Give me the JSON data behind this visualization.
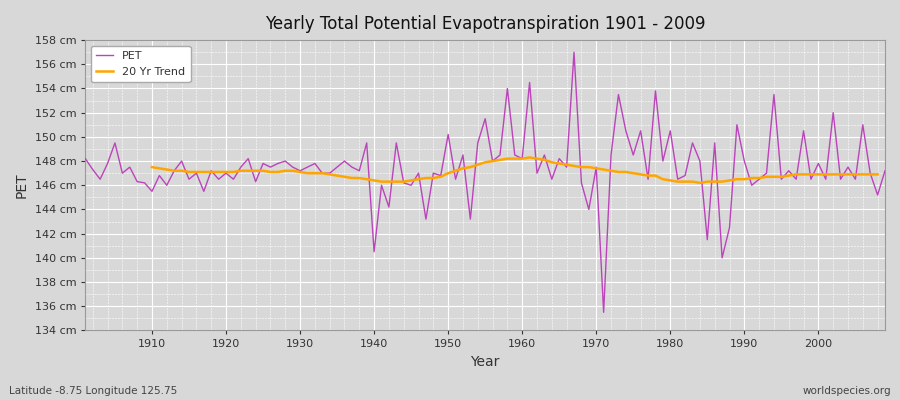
{
  "title": "Yearly Total Potential Evapotranspiration 1901 - 2009",
  "xlabel": "Year",
  "ylabel": "PET",
  "subtitle_left": "Latitude -8.75 Longitude 125.75",
  "subtitle_right": "worldspecies.org",
  "pet_color": "#BB44BB",
  "trend_color": "#FFA500",
  "background_color": "#D8D8D8",
  "plot_background": "#D8D8D8",
  "grid_color": "#FFFFFF",
  "ylim": [
    134,
    158
  ],
  "ytick_step": 2,
  "years": [
    1901,
    1902,
    1903,
    1904,
    1905,
    1906,
    1907,
    1908,
    1909,
    1910,
    1911,
    1912,
    1913,
    1914,
    1915,
    1916,
    1917,
    1918,
    1919,
    1920,
    1921,
    1922,
    1923,
    1924,
    1925,
    1926,
    1927,
    1928,
    1929,
    1930,
    1931,
    1932,
    1933,
    1934,
    1935,
    1936,
    1937,
    1938,
    1939,
    1940,
    1941,
    1942,
    1943,
    1944,
    1945,
    1946,
    1947,
    1948,
    1949,
    1950,
    1951,
    1952,
    1953,
    1954,
    1955,
    1956,
    1957,
    1958,
    1959,
    1960,
    1961,
    1962,
    1963,
    1964,
    1965,
    1966,
    1967,
    1968,
    1969,
    1970,
    1971,
    1972,
    1973,
    1974,
    1975,
    1976,
    1977,
    1978,
    1979,
    1980,
    1981,
    1982,
    1983,
    1984,
    1985,
    1986,
    1987,
    1988,
    1989,
    1990,
    1991,
    1992,
    1993,
    1994,
    1995,
    1996,
    1997,
    1998,
    1999,
    2000,
    2001,
    2002,
    2003,
    2004,
    2005,
    2006,
    2007,
    2008,
    2009
  ],
  "pet_values": [
    148.2,
    147.3,
    146.5,
    147.8,
    149.5,
    147.0,
    147.5,
    146.3,
    146.2,
    145.5,
    146.8,
    146.0,
    147.2,
    148.0,
    146.5,
    147.0,
    145.5,
    147.2,
    146.5,
    147.0,
    146.5,
    147.5,
    148.2,
    146.3,
    147.8,
    147.5,
    147.8,
    148.0,
    147.5,
    147.2,
    147.5,
    147.8,
    147.0,
    147.0,
    147.5,
    148.0,
    147.5,
    147.2,
    149.5,
    140.5,
    146.0,
    144.2,
    149.5,
    146.2,
    146.0,
    147.0,
    143.2,
    147.0,
    146.8,
    150.2,
    146.5,
    148.5,
    143.2,
    149.5,
    151.5,
    148.0,
    148.5,
    154.0,
    148.5,
    148.2,
    154.5,
    147.0,
    148.5,
    146.5,
    148.2,
    147.5,
    157.0,
    146.2,
    144.0,
    147.5,
    135.5,
    148.5,
    153.5,
    150.5,
    148.5,
    150.5,
    146.5,
    153.8,
    148.0,
    150.5,
    146.5,
    146.8,
    149.5,
    148.0,
    141.5,
    149.5,
    140.0,
    142.5,
    151.0,
    148.0,
    146.0,
    146.5,
    147.0,
    153.5,
    146.5,
    147.2,
    146.5,
    150.5,
    146.5,
    147.8,
    146.5,
    152.0,
    146.5,
    147.5,
    146.5,
    151.0,
    147.0,
    145.2,
    147.2
  ],
  "trend_values": [
    null,
    null,
    null,
    null,
    null,
    null,
    null,
    null,
    null,
    147.5,
    147.4,
    147.3,
    147.2,
    147.2,
    147.1,
    147.1,
    147.1,
    147.1,
    147.1,
    147.1,
    147.1,
    147.2,
    147.2,
    147.2,
    147.2,
    147.1,
    147.1,
    147.2,
    147.2,
    147.1,
    147.0,
    147.0,
    147.0,
    146.9,
    146.8,
    146.7,
    146.6,
    146.6,
    146.5,
    146.4,
    146.3,
    146.3,
    146.3,
    146.3,
    146.4,
    146.5,
    146.6,
    146.6,
    146.7,
    147.0,
    147.2,
    147.4,
    147.5,
    147.7,
    147.9,
    148.0,
    148.1,
    148.2,
    148.2,
    148.2,
    148.3,
    148.2,
    148.1,
    147.9,
    147.8,
    147.7,
    147.6,
    147.5,
    147.5,
    147.4,
    147.3,
    147.2,
    147.1,
    147.1,
    147.0,
    146.9,
    146.8,
    146.8,
    146.5,
    146.4,
    146.3,
    146.3,
    146.3,
    146.2,
    146.3,
    146.3,
    146.3,
    146.4,
    146.5,
    146.5,
    146.6,
    146.6,
    146.7,
    146.7,
    146.7,
    146.8,
    146.9,
    146.9,
    146.9,
    146.9,
    146.9,
    146.9,
    146.9,
    146.9,
    146.9,
    146.9,
    146.9,
    146.9
  ]
}
